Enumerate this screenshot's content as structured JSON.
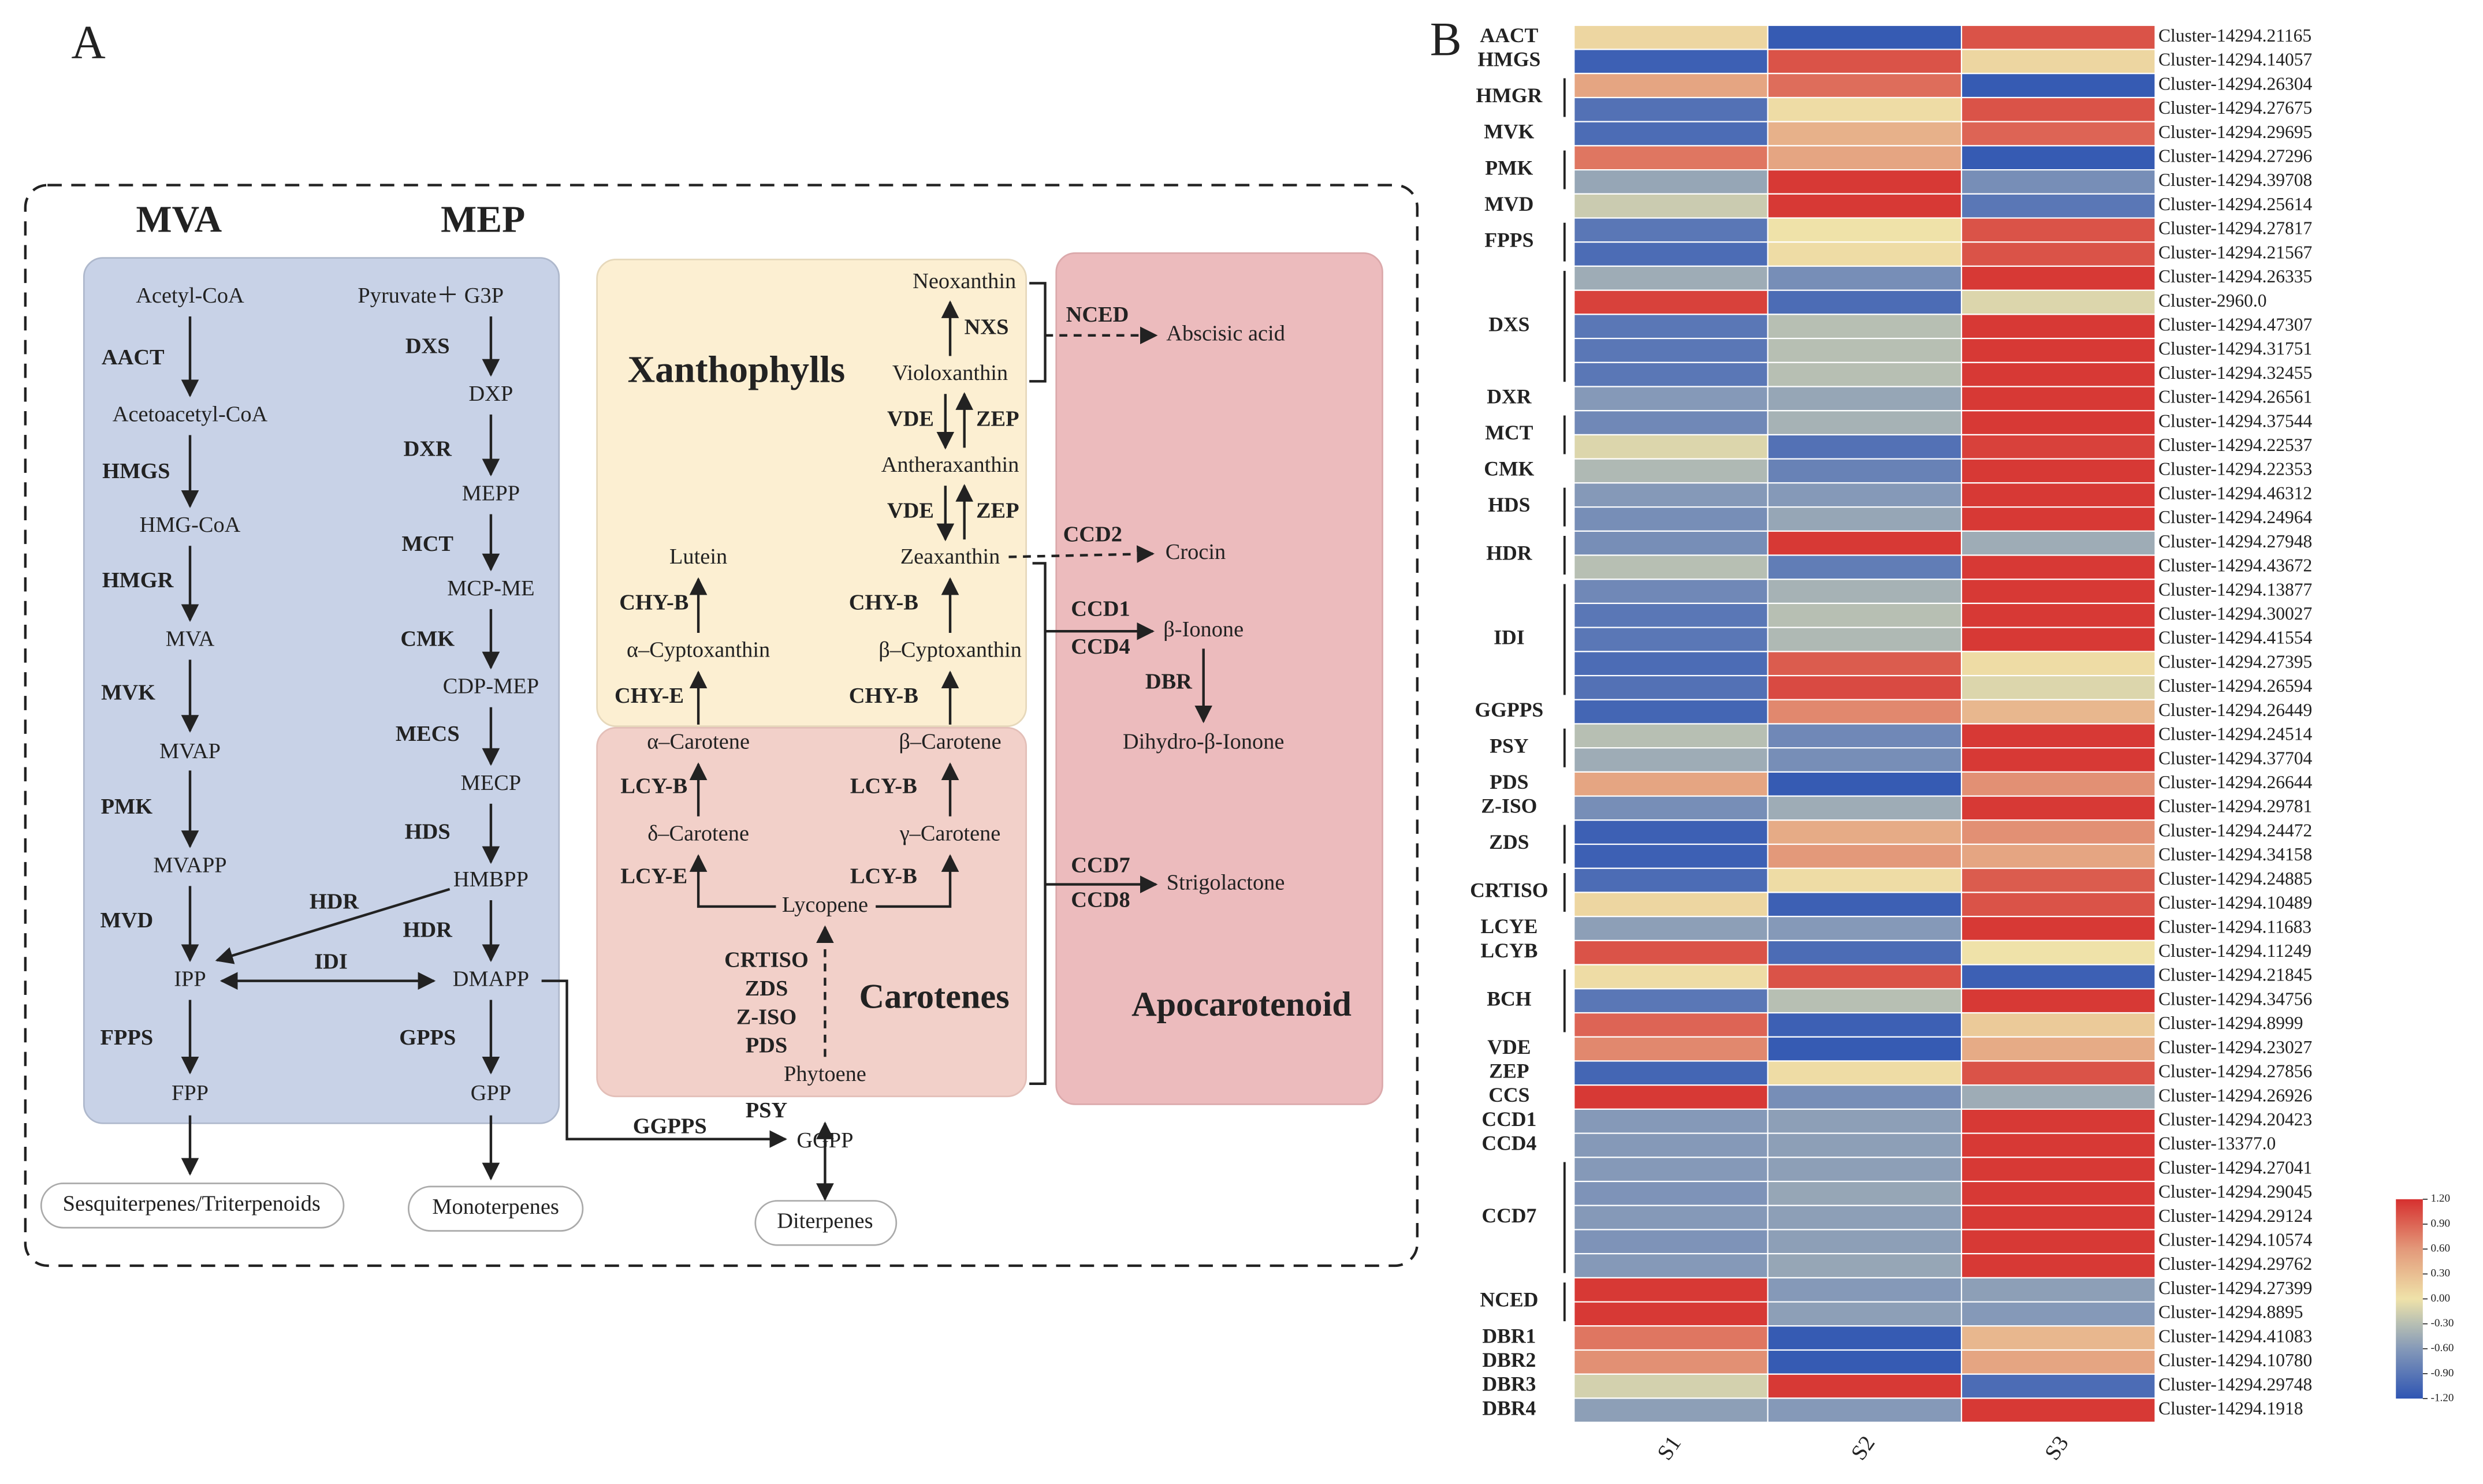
{
  "panel_a": {
    "label": "A",
    "titles": [
      "MVA",
      "MEP",
      "Xanthophylls",
      "Carotenes",
      "Apocarotenoid"
    ],
    "nodes": [
      "Acetyl-CoA",
      "Acetoacetyl-CoA",
      "HMG-CoA",
      "MVA",
      "MVAP",
      "MVAPP",
      "IPP",
      "FPP",
      "Pyruvate＋ G3P",
      "DXP",
      "MEPP",
      "MCP-ME",
      "CDP-MEP",
      "MECP",
      "HMBPP",
      "DMAPP",
      "GPP",
      "GGPP",
      "Phytoene",
      "Lycopene",
      "δ–Carotene",
      "α–Carotene",
      "γ–Carotene",
      "β–Carotene",
      "α–Cyptoxanthin",
      "Lutein",
      "β–Cyptoxanthin",
      "Zeaxanthin",
      "Antheraxanthin",
      "Violoxanthin",
      "Neoxanthin",
      "Abscisic acid",
      "Crocin",
      "β-Ionone",
      "Dihydro-β-Ionone",
      "Strigolactone"
    ],
    "enzymes": [
      "AACT",
      "HMGS",
      "HMGR",
      "MVK",
      "PMK",
      "MVD",
      "FPPS",
      "DXS",
      "DXR",
      "MCT",
      "CMK",
      "MECS",
      "HDS",
      "HDR",
      "HDR",
      "IDI",
      "GPPS",
      "GGPPS",
      "PSY",
      "CRTISO",
      "ZDS",
      "Z-ISO",
      "PDS",
      "LCY-E",
      "LCY-B",
      "LCY-B",
      "LCY-B",
      "CHY-E",
      "CHY-B",
      "CHY-B",
      "CHY-B",
      "VDE",
      "ZEP",
      "VDE",
      "ZEP",
      "NXS",
      "NCED",
      "CCD2",
      "CCD1",
      "CCD4",
      "DBR",
      "CCD7",
      "CCD8"
    ],
    "end_products": [
      "Sesquiterpenes/Triterpenoids",
      "Monoterpenes",
      "Diterpenes"
    ]
  },
  "panel_b": {
    "label": "B",
    "columns": [
      "S1",
      "S2",
      "S3"
    ],
    "genes": [
      {
        "name": "AACT",
        "clusters": [
          "Cluster-14294.21165"
        ],
        "values": [
          [
            0.1,
            -1.15,
            1.0
          ]
        ]
      },
      {
        "name": "HMGS",
        "clusters": [
          "Cluster-14294.14057"
        ],
        "values": [
          [
            -1.1,
            1.0,
            0.1
          ]
        ]
      },
      {
        "name": "HMGR",
        "clusters": [
          "Cluster-14294.26304",
          "Cluster-14294.27675"
        ],
        "values": [
          [
            0.5,
            0.85,
            -1.15
          ],
          [
            -0.95,
            0.05,
            1.0
          ]
        ]
      },
      {
        "name": "MVK",
        "clusters": [
          "Cluster-14294.29695"
        ],
        "values": [
          [
            -1.0,
            0.4,
            0.9
          ]
        ]
      },
      {
        "name": "PMK",
        "clusters": [
          "Cluster-14294.27296",
          "Cluster-14294.39708"
        ],
        "values": [
          [
            0.8,
            0.5,
            -1.15
          ],
          [
            -0.5,
            1.15,
            -0.7
          ]
        ]
      },
      {
        "name": "MVD",
        "clusters": [
          "Cluster-14294.25614"
        ],
        "values": [
          [
            -0.2,
            1.15,
            -0.9
          ]
        ]
      },
      {
        "name": "FPPS",
        "clusters": [
          "Cluster-14294.27817",
          "Cluster-14294.21567"
        ],
        "values": [
          [
            -0.9,
            0.0,
            1.0
          ],
          [
            -1.0,
            0.05,
            1.0
          ]
        ]
      },
      {
        "name": "DXS",
        "clusters": [
          "Cluster-14294.26335",
          "Cluster-2960.0",
          "Cluster-14294.47307",
          "Cluster-14294.31751",
          "Cluster-14294.32455"
        ],
        "values": [
          [
            -0.45,
            -0.7,
            1.15
          ],
          [
            1.1,
            -1.0,
            -0.1
          ],
          [
            -0.9,
            -0.3,
            1.15
          ],
          [
            -0.9,
            -0.3,
            1.15
          ],
          [
            -0.9,
            -0.3,
            1.15
          ]
        ]
      },
      {
        "name": "DXR",
        "clusters": [
          "Cluster-14294.26561"
        ],
        "values": [
          [
            -0.6,
            -0.5,
            1.15
          ]
        ]
      },
      {
        "name": "MCT",
        "clusters": [
          "Cluster-14294.37544",
          "Cluster-14294.22537"
        ],
        "values": [
          [
            -0.75,
            -0.4,
            1.15
          ],
          [
            -0.1,
            -0.95,
            1.1
          ]
        ]
      },
      {
        "name": "CMK",
        "clusters": [
          "Cluster-14294.22353"
        ],
        "values": [
          [
            -0.35,
            -0.8,
            1.15
          ]
        ]
      },
      {
        "name": "HDS",
        "clusters": [
          "Cluster-14294.46312",
          "Cluster-14294.24964"
        ],
        "values": [
          [
            -0.6,
            -0.6,
            1.15
          ],
          [
            -0.7,
            -0.5,
            1.15
          ]
        ]
      },
      {
        "name": "HDR",
        "clusters": [
          "Cluster-14294.27948",
          "Cluster-14294.43672"
        ],
        "values": [
          [
            -0.7,
            1.15,
            -0.45
          ],
          [
            -0.3,
            -0.85,
            1.15
          ]
        ]
      },
      {
        "name": "IDI",
        "clusters": [
          "Cluster-14294.13877",
          "Cluster-14294.30027",
          "Cluster-14294.41554",
          "Cluster-14294.27395",
          "Cluster-14294.26594"
        ],
        "values": [
          [
            -0.75,
            -0.4,
            1.15
          ],
          [
            -0.9,
            -0.3,
            1.15
          ],
          [
            -0.9,
            -0.35,
            1.15
          ],
          [
            -1.0,
            0.95,
            0.05
          ],
          [
            -0.95,
            1.05,
            -0.1
          ]
        ]
      },
      {
        "name": "GGPPS",
        "clusters": [
          "Cluster-14294.26449"
        ],
        "values": [
          [
            -1.05,
            0.7,
            0.35
          ]
        ]
      },
      {
        "name": "PSY",
        "clusters": [
          "Cluster-14294.24514",
          "Cluster-14294.37704"
        ],
        "values": [
          [
            -0.3,
            -0.75,
            1.15
          ],
          [
            -0.45,
            -0.7,
            1.15
          ]
        ]
      },
      {
        "name": "PDS",
        "clusters": [
          "Cluster-14294.26644"
        ],
        "values": [
          [
            0.5,
            -1.15,
            0.65
          ]
        ]
      },
      {
        "name": "Z-ISO",
        "clusters": [
          "Cluster-14294.29781"
        ],
        "values": [
          [
            -0.7,
            -0.45,
            1.15
          ]
        ]
      },
      {
        "name": "ZDS",
        "clusters": [
          "Cluster-14294.24472",
          "Cluster-14294.34158"
        ],
        "values": [
          [
            -1.1,
            0.45,
            0.65
          ],
          [
            -1.1,
            0.6,
            0.5
          ]
        ]
      },
      {
        "name": "CRTISO",
        "clusters": [
          "Cluster-14294.24885",
          "Cluster-14294.10489"
        ],
        "values": [
          [
            -1.0,
            0.05,
            0.95
          ],
          [
            0.1,
            -1.1,
            1.0
          ]
        ]
      },
      {
        "name": "LCYE",
        "clusters": [
          "Cluster-14294.11683"
        ],
        "values": [
          [
            -0.55,
            -0.6,
            1.15
          ]
        ]
      },
      {
        "name": "LCYB",
        "clusters": [
          "Cluster-14294.11249"
        ],
        "values": [
          [
            1.0,
            -1.0,
            0.0
          ]
        ]
      },
      {
        "name": "BCH",
        "clusters": [
          "Cluster-14294.21845",
          "Cluster-14294.34756",
          "Cluster-14294.8999"
        ],
        "values": [
          [
            0.05,
            1.0,
            -1.1
          ],
          [
            -0.9,
            -0.3,
            1.15
          ],
          [
            0.9,
            -1.1,
            0.2
          ]
        ]
      },
      {
        "name": "VDE",
        "clusters": [
          "Cluster-14294.23027"
        ],
        "values": [
          [
            0.7,
            -1.15,
            0.45
          ]
        ]
      },
      {
        "name": "ZEP",
        "clusters": [
          "Cluster-14294.27856"
        ],
        "values": [
          [
            -1.05,
            0.05,
            1.0
          ]
        ]
      },
      {
        "name": "CCS",
        "clusters": [
          "Cluster-14294.26926"
        ],
        "values": [
          [
            1.15,
            -0.7,
            -0.45
          ]
        ]
      },
      {
        "name": "CCD1",
        "clusters": [
          "Cluster-14294.20423"
        ],
        "values": [
          [
            -0.6,
            -0.55,
            1.15
          ]
        ]
      },
      {
        "name": "CCD4",
        "clusters": [
          "Cluster-13377.0"
        ],
        "values": [
          [
            -0.6,
            -0.55,
            1.15
          ]
        ]
      },
      {
        "name": "CCD7",
        "clusters": [
          "Cluster-14294.27041",
          "Cluster-14294.29045",
          "Cluster-14294.29124",
          "Cluster-14294.10574",
          "Cluster-14294.29762"
        ],
        "values": [
          [
            -0.6,
            -0.55,
            1.15
          ],
          [
            -0.65,
            -0.5,
            1.15
          ],
          [
            -0.6,
            -0.55,
            1.15
          ],
          [
            -0.65,
            -0.55,
            1.15
          ],
          [
            -0.6,
            -0.5,
            1.15
          ]
        ]
      },
      {
        "name": "NCED",
        "clusters": [
          "Cluster-14294.27399",
          "Cluster-14294.8895"
        ],
        "values": [
          [
            1.15,
            -0.6,
            -0.55
          ],
          [
            1.15,
            -0.55,
            -0.6
          ]
        ]
      },
      {
        "name": "DBR1",
        "clusters": [
          "Cluster-14294.41083"
        ],
        "values": [
          [
            0.8,
            -1.15,
            0.35
          ]
        ]
      },
      {
        "name": "DBR2",
        "clusters": [
          "Cluster-14294.10780"
        ],
        "values": [
          [
            0.65,
            -1.15,
            0.5
          ]
        ]
      },
      {
        "name": "DBR3",
        "clusters": [
          "Cluster-14294.29748"
        ],
        "values": [
          [
            -0.15,
            1.15,
            -1.0
          ]
        ]
      },
      {
        "name": "DBR4",
        "clusters": [
          "Cluster-14294.1918"
        ],
        "values": [
          [
            -0.55,
            -0.6,
            1.15
          ]
        ]
      }
    ],
    "clim": [
      -1.2,
      1.2
    ],
    "colorscale": [
      {
        "value": -1.2,
        "color": "#2f55b3"
      },
      {
        "value": -0.6,
        "color": "#8599b8"
      },
      {
        "value": -0.3,
        "color": "#b7bfb3"
      },
      {
        "value": 0,
        "color": "#efe2a9"
      },
      {
        "value": 0.6,
        "color": "#e3997a"
      },
      {
        "value": 1.2,
        "color": "#d6302f"
      }
    ],
    "colorbar_ticks": [
      {
        "value": 1.2,
        "label": "1.20"
      },
      {
        "value": 0.9,
        "label": "0.90"
      },
      {
        "value": 0.6,
        "label": "0.60"
      },
      {
        "value": 0.3,
        "label": "0.30"
      },
      {
        "value": 0,
        "label": "0.00"
      },
      {
        "value": -0.3,
        "label": "-0.30"
      },
      {
        "value": -0.6,
        "label": "-0.60"
      },
      {
        "value": -0.9,
        "label": "-0.90"
      },
      {
        "value": -1.2,
        "label": "-1.20"
      }
    ]
  }
}
